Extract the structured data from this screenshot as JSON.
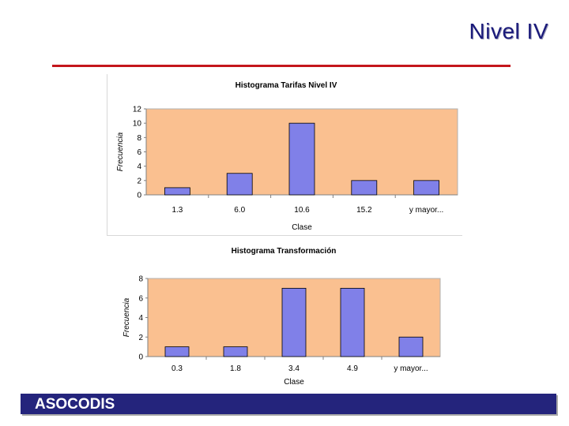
{
  "slide": {
    "title": "Nivel IV",
    "footer": "ASOCODIS"
  },
  "colors": {
    "plot_bg": "#fac090",
    "bar": "#8080e8",
    "bar_edge": "#000000",
    "title": "#1a1a7a",
    "rule": "#c4161c",
    "footer_bg": "#24247c"
  },
  "chart_data": [
    {
      "type": "bar",
      "title": "Histograma Tarifas Nivel IV",
      "xlabel": "Clase",
      "ylabel": "Frecuencia",
      "categories": [
        "1.3",
        "6.0",
        "10.6",
        "15.2",
        "y mayor..."
      ],
      "values": [
        1,
        3,
        10,
        2,
        2
      ],
      "ylim": [
        0,
        12
      ],
      "yticks": [
        "0",
        "2",
        "4",
        "6",
        "8",
        "10",
        "12"
      ],
      "grid": false,
      "legend": "none"
    },
    {
      "type": "bar",
      "title": "Histograma Transformación",
      "xlabel": "Clase",
      "ylabel": "Frecuencia",
      "categories": [
        "0.3",
        "1.8",
        "3.4",
        "4.9",
        "y mayor..."
      ],
      "values": [
        1,
        1,
        7,
        7,
        2
      ],
      "ylim": [
        0,
        8
      ],
      "yticks": [
        "0",
        "2",
        "4",
        "6",
        "8"
      ],
      "grid": false,
      "legend": "none"
    }
  ]
}
